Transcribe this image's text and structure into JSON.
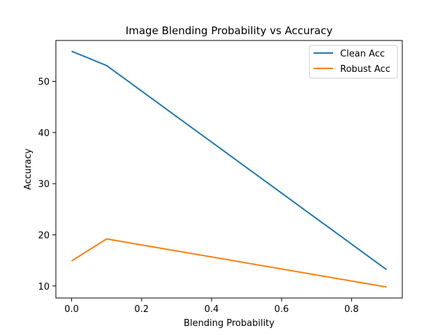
{
  "chart_data": {
    "type": "line",
    "title": "Image Blending Probability vs Accuracy",
    "xlabel": "Blending Probability",
    "ylabel": "Accuracy",
    "xlim": [
      -0.045,
      0.945
    ],
    "ylim": [
      7.65,
      58.0
    ],
    "xticks": [
      0.0,
      0.2,
      0.4,
      0.6,
      0.8
    ],
    "xtick_labels": [
      "0.0",
      "0.2",
      "0.4",
      "0.6",
      "0.8"
    ],
    "yticks": [
      10,
      20,
      30,
      40,
      50
    ],
    "ytick_labels": [
      "10",
      "20",
      "30",
      "40",
      "50"
    ],
    "grid": false,
    "legend_position": "top-right",
    "x": [
      0.0,
      0.1,
      0.9
    ],
    "series": [
      {
        "name": "Clean Acc",
        "color": "#1f77b4",
        "values": [
          55.9,
          53.1,
          13.2
        ]
      },
      {
        "name": "Robust Acc",
        "color": "#ff7f0e",
        "values": [
          14.9,
          19.2,
          9.8
        ]
      }
    ]
  }
}
